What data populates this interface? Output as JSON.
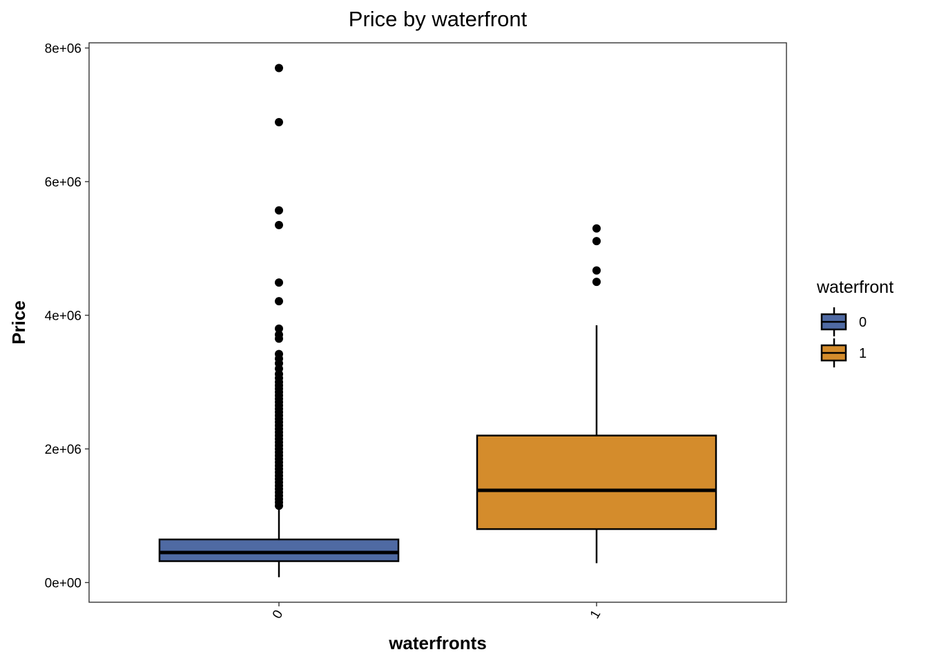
{
  "chart_data": {
    "type": "boxplot",
    "title": "Price by waterfront",
    "xlabel": "waterfronts",
    "ylabel": "Price",
    "categories": [
      "0",
      "1"
    ],
    "ylim": [
      -300000,
      8100000
    ],
    "y_ticks": [
      0,
      2000000,
      4000000,
      6000000,
      8000000
    ],
    "y_tick_labels": [
      "0e+00",
      "2e+06",
      "4e+06",
      "6e+06",
      "8e+06"
    ],
    "x_tick_rotation_deg": -60,
    "grid": false,
    "legend": {
      "title": "waterfront",
      "position": "right",
      "items": [
        {
          "label": "0",
          "color": "#4F6AA3"
        },
        {
          "label": "1",
          "color": "#D48C2C"
        }
      ]
    },
    "series": [
      {
        "category": "0",
        "color": "#4F6AA3",
        "whisker_low": 80000,
        "q1": 320000,
        "median": 450000,
        "q3": 645000,
        "whisker_high": 1130000,
        "outliers": [
          7700000,
          6890000,
          5570000,
          5350000,
          4490000,
          4210000,
          3800000,
          3710000,
          3650000,
          3420000,
          3350000,
          3280000,
          3200000,
          3120000,
          3060000,
          3000000,
          2950000,
          2900000,
          2850000,
          2800000,
          2750000,
          2700000,
          2650000,
          2600000,
          2550000,
          2500000,
          2450000,
          2400000,
          2350000,
          2300000,
          2250000,
          2200000,
          2150000,
          2100000,
          2050000,
          2000000,
          1950000,
          1900000,
          1850000,
          1800000,
          1750000,
          1700000,
          1650000,
          1600000,
          1550000,
          1500000,
          1450000,
          1400000,
          1350000,
          1300000,
          1250000,
          1200000,
          1150000
        ]
      },
      {
        "category": "1",
        "color": "#D48C2C",
        "whisker_low": 290000,
        "q1": 800000,
        "median": 1380000,
        "q3": 2200000,
        "whisker_high": 3850000,
        "outliers": [
          5300000,
          5110000,
          4670000,
          4500000
        ]
      }
    ]
  }
}
